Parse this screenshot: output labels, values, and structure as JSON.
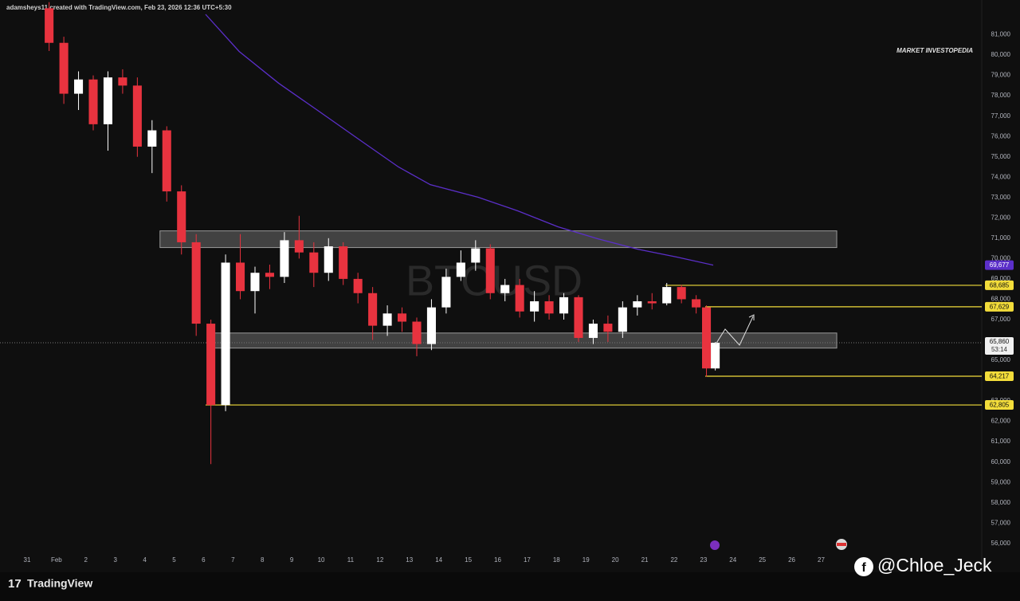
{
  "header": {
    "text": "adamsheys11 created with TradingView.com, Feb 23, 2026 12:36 UTC+5:30"
  },
  "chart_data": {
    "type": "candlestick",
    "watermark": "BTCUSD",
    "annotation": "MARKET INVESTOPEDIA",
    "colors": {
      "up": "#ffffff",
      "down": "#e8333f"
    },
    "x": [
      0.75,
      1.25,
      1.75,
      2.25,
      2.75,
      3.25,
      3.75,
      4.25,
      4.75,
      5.25,
      5.75,
      6.25,
      6.75,
      7.25,
      7.75,
      8.25,
      8.75,
      9.25,
      9.75,
      10.25,
      10.75,
      11.25,
      11.75,
      12.25,
      12.75,
      13.25,
      13.75,
      14.25,
      14.75,
      15.25,
      15.75,
      16.25,
      16.75,
      17.25,
      17.75,
      18.25,
      18.75,
      19.25,
      19.75,
      20.25,
      20.75,
      21.25,
      21.75,
      22.25,
      22.75,
      23.1,
      23.4
    ],
    "open": [
      82300,
      80600,
      78100,
      78800,
      76600,
      78900,
      78500,
      75500,
      76300,
      73300,
      70800,
      66800,
      62800,
      69800,
      68400,
      69300,
      69100,
      70900,
      70300,
      69300,
      70600,
      69000,
      68300,
      66700,
      67300,
      66900,
      65800,
      67600,
      69100,
      69800,
      70500,
      68300,
      68700,
      67400,
      67900,
      67300,
      68100,
      66100,
      66800,
      66400,
      67600,
      67900,
      67800,
      68600,
      68000,
      67600,
      64600
    ],
    "high": [
      82600,
      80900,
      79200,
      79000,
      79200,
      79300,
      78900,
      76800,
      76500,
      73600,
      71200,
      67000,
      70200,
      71200,
      69600,
      69700,
      71300,
      72100,
      70800,
      71000,
      70800,
      69300,
      68600,
      67700,
      67600,
      67100,
      68000,
      69500,
      70400,
      70900,
      70700,
      69000,
      69000,
      68400,
      68200,
      68300,
      68200,
      67000,
      67200,
      67900,
      68200,
      68300,
      68800,
      68700,
      68200,
      67700,
      65900
    ],
    "low": [
      80200,
      77600,
      77300,
      76300,
      75300,
      78100,
      75000,
      74200,
      72800,
      70200,
      66200,
      59900,
      62500,
      68000,
      67300,
      68500,
      68800,
      70000,
      68600,
      68900,
      68700,
      67800,
      66000,
      66200,
      66400,
      65200,
      65500,
      67300,
      68900,
      69400,
      68000,
      67900,
      67100,
      66900,
      67000,
      67000,
      65900,
      65800,
      65900,
      66100,
      67200,
      67500,
      67700,
      67800,
      67300,
      64200,
      64500
    ],
    "close": [
      80600,
      78100,
      78800,
      76600,
      78900,
      78500,
      75500,
      76300,
      73300,
      70800,
      66800,
      62800,
      69800,
      68400,
      69300,
      69100,
      70900,
      70300,
      69300,
      70600,
      69000,
      68300,
      66700,
      67300,
      66900,
      65800,
      67600,
      69100,
      69800,
      70500,
      68300,
      68700,
      67400,
      67900,
      67300,
      68100,
      66100,
      66800,
      66400,
      67600,
      67900,
      67800,
      68600,
      68000,
      67600,
      64600,
      65860
    ],
    "ma": {
      "color": "#5b2fc9",
      "x": [
        6.07,
        7.21,
        8.56,
        9.92,
        11.27,
        12.63,
        13.71,
        15.34,
        16.69,
        18.05,
        19.41,
        20.76,
        22.11,
        23.33
      ],
      "values": [
        82000,
        80180,
        78610,
        77240,
        75870,
        74500,
        73630,
        73010,
        72340,
        71560,
        70970,
        70460,
        70070,
        69677
      ],
      "value_label": "69,677"
    },
    "zones": [
      {
        "x": [
          4.52,
          27.53
        ],
        "y": [
          71360,
          70540
        ]
      },
      {
        "x": [
          6.18,
          27.53
        ],
        "y": [
          66340,
          65600
        ]
      }
    ],
    "levels": [
      {
        "value": 68685,
        "label": "68,685",
        "x_start": 21.7
      },
      {
        "value": 67629,
        "label": "67,629",
        "x_start": 23.06
      },
      {
        "value": 64217,
        "label": "64,217",
        "x_start": 23.06
      },
      {
        "value": 62805,
        "label": "62,805",
        "x_start": 6.07
      }
    ],
    "level_color": "#f2dc3a",
    "last_price": {
      "value": 65860,
      "label": "65,860",
      "countdown": "53:14"
    },
    "xlim": [
      -0.92,
      32.46
    ],
    "ylim": [
      55600,
      82000
    ],
    "xticks": [
      {
        "value": 0,
        "label": "31"
      },
      {
        "value": 1,
        "label": "Feb"
      },
      2,
      3,
      4,
      5,
      6,
      7,
      8,
      9,
      10,
      11,
      12,
      13,
      14,
      15,
      16,
      17,
      18,
      19,
      20,
      21,
      22,
      23,
      24,
      25,
      26,
      27
    ],
    "yticks": [
      {
        "value": 56000,
        "label": "56,000"
      },
      {
        "value": 57000,
        "label": "57,000"
      },
      {
        "value": 58000,
        "label": "58,000"
      },
      {
        "value": 59000,
        "label": "59,000"
      },
      {
        "value": 60000,
        "label": "60,000"
      },
      {
        "value": 61000,
        "label": "61,000"
      },
      {
        "value": 62000,
        "label": "62,000"
      },
      {
        "value": 63000,
        "label": "63,000"
      },
      {
        "value": 65000,
        "label": "65,000"
      },
      {
        "value": 67000,
        "label": "67,000"
      },
      {
        "value": 68000,
        "label": "68,000"
      },
      {
        "value": 69000,
        "label": "69,000"
      },
      {
        "value": 70000,
        "label": "70,000"
      },
      {
        "value": 71000,
        "label": "71,000"
      },
      {
        "value": 72000,
        "label": "72,000"
      },
      {
        "value": 73000,
        "label": "73,000"
      },
      {
        "value": 74000,
        "label": "74,000"
      },
      {
        "value": 75000,
        "label": "75,000"
      },
      {
        "value": 76000,
        "label": "76,000"
      },
      {
        "value": 77000,
        "label": "77,000"
      },
      {
        "value": 78000,
        "label": "78,000"
      },
      {
        "value": 79000,
        "label": "79,000"
      },
      {
        "value": 80000,
        "label": "80,000"
      },
      {
        "value": 81000,
        "label": "81,000"
      }
    ]
  },
  "footer": {
    "logo": "TradingView",
    "credit": "@Chloe_Jeck"
  }
}
